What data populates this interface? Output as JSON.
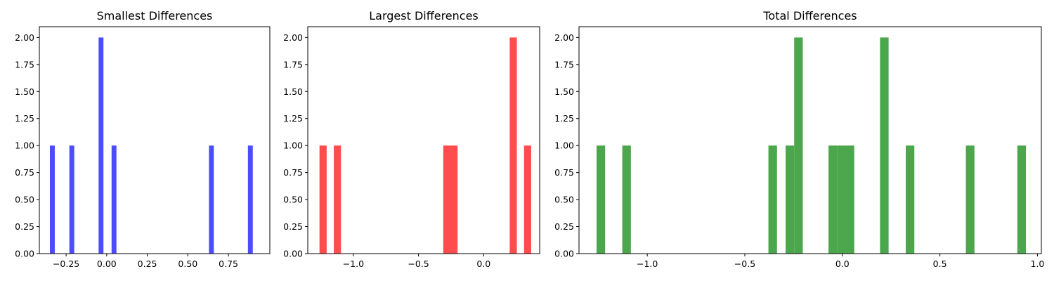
{
  "chart_data": [
    {
      "type": "bar",
      "title": "Smallest Differences",
      "color": "#4c4cff",
      "xlim": [
        -0.415,
        1.005
      ],
      "ylim": [
        0,
        2.1
      ],
      "xticks": [
        -0.25,
        0.0,
        0.25,
        0.5,
        0.75
      ],
      "xtick_labels": [
        "−0.25",
        "0.00",
        "0.25",
        "0.50",
        "0.75"
      ],
      "yticks": [
        0,
        0.25,
        0.5,
        0.75,
        1.0,
        1.25,
        1.5,
        1.75,
        2.0
      ],
      "ytick_labels": [
        "0.00",
        "0.25",
        "0.50",
        "0.75",
        "1.00",
        "1.25",
        "1.50",
        "1.75",
        "2.00"
      ],
      "bins": [
        {
          "x0": -0.35,
          "x1": -0.32,
          "count": 1
        },
        {
          "x0": -0.23,
          "x1": -0.2,
          "count": 1
        },
        {
          "x0": -0.05,
          "x1": -0.02,
          "count": 2
        },
        {
          "x0": 0.03,
          "x1": 0.06,
          "count": 1
        },
        {
          "x0": 0.63,
          "x1": 0.66,
          "count": 1
        },
        {
          "x0": 0.87,
          "x1": 0.9,
          "count": 1
        }
      ]
    },
    {
      "type": "bar",
      "title": "Largest Differences",
      "color": "#ff4c4c",
      "xlim": [
        -1.35,
        0.43
      ],
      "ylim": [
        0,
        2.1
      ],
      "xticks": [
        -1.0,
        -0.5,
        0.0
      ],
      "xtick_labels": [
        "−1.0",
        "−0.5",
        "0.0"
      ],
      "yticks": [
        0,
        0.25,
        0.5,
        0.75,
        1.0,
        1.25,
        1.5,
        1.75,
        2.0
      ],
      "ytick_labels": [
        "0.00",
        "0.25",
        "0.50",
        "0.75",
        "1.00",
        "1.25",
        "1.50",
        "1.75",
        "2.00"
      ],
      "bins": [
        {
          "x0": -1.26,
          "x1": -1.205,
          "count": 1
        },
        {
          "x0": -1.15,
          "x1": -1.095,
          "count": 1
        },
        {
          "x0": -0.31,
          "x1": -0.255,
          "count": 1
        },
        {
          "x0": -0.255,
          "x1": -0.2,
          "count": 1
        },
        {
          "x0": 0.2,
          "x1": 0.255,
          "count": 2
        },
        {
          "x0": 0.31,
          "x1": 0.365,
          "count": 1
        }
      ]
    },
    {
      "type": "bar",
      "title": "Total Differences",
      "color": "#4ca64c",
      "xlim": [
        -1.35,
        1.02
      ],
      "ylim": [
        0,
        2.1
      ],
      "xticks": [
        -1.0,
        -0.5,
        0.0,
        0.5,
        1.0
      ],
      "xtick_labels": [
        "−1.0",
        "−0.5",
        "0.0",
        "0.5",
        "1.0"
      ],
      "yticks": [
        0,
        0.25,
        0.5,
        0.75,
        1.0,
        1.25,
        1.5,
        1.75,
        2.0
      ],
      "ytick_labels": [
        "0.00",
        "0.25",
        "0.50",
        "0.75",
        "1.00",
        "1.25",
        "1.50",
        "1.75",
        "2.00"
      ],
      "bins": [
        {
          "x0": -1.26,
          "x1": -1.216,
          "count": 1
        },
        {
          "x0": -1.128,
          "x1": -1.084,
          "count": 1
        },
        {
          "x0": -0.379,
          "x1": -0.335,
          "count": 1
        },
        {
          "x0": -0.291,
          "x1": -0.247,
          "count": 1
        },
        {
          "x0": -0.247,
          "x1": -0.203,
          "count": 2
        },
        {
          "x0": -0.071,
          "x1": -0.027,
          "count": 1
        },
        {
          "x0": -0.027,
          "x1": 0.017,
          "count": 1
        },
        {
          "x0": 0.017,
          "x1": 0.061,
          "count": 1
        },
        {
          "x0": 0.193,
          "x1": 0.237,
          "count": 2
        },
        {
          "x0": 0.325,
          "x1": 0.369,
          "count": 1
        },
        {
          "x0": 0.633,
          "x1": 0.677,
          "count": 1
        },
        {
          "x0": 0.897,
          "x1": 0.941,
          "count": 1
        }
      ]
    }
  ]
}
